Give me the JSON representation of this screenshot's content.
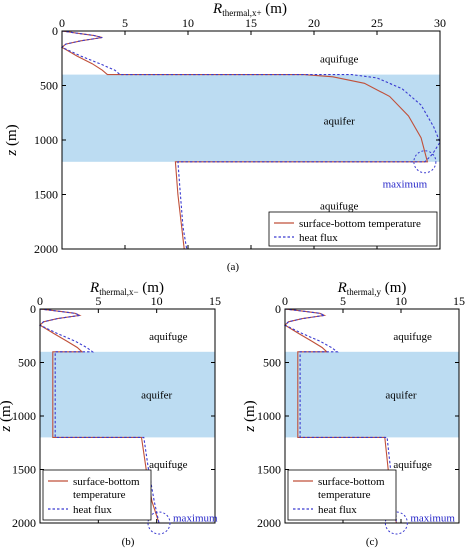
{
  "chart_data": [
    {
      "panel": "(a)",
      "type": "line",
      "xlabel_main": "R",
      "xlabel_sub": "thermal,x+",
      "xlabel_unit": "(m)",
      "ylabel_main": "z",
      "ylabel_unit": "(m)",
      "xlim": [
        0,
        30
      ],
      "ylim": [
        0,
        2000
      ],
      "y_inverted": true,
      "x_axis_position": "top",
      "xticks": [
        "0",
        "5",
        "10",
        "15",
        "20",
        "25",
        "30"
      ],
      "yticks": [
        "0",
        "500",
        "1000",
        "1500",
        "2000"
      ],
      "aquifer_band": [
        400,
        1200
      ],
      "aquifer_color": "#bcdcf2",
      "region_labels": [
        {
          "text": "aquifuge",
          "x": 22,
          "y": 250
        },
        {
          "text": "aquifer",
          "x": 22,
          "y": 820
        },
        {
          "text": "aquifuge",
          "x": 22,
          "y": 1600
        }
      ],
      "annotation": {
        "text": "maximum",
        "x": 28.8,
        "y": 1200,
        "label_y": 1400
      },
      "legend": {
        "entries": [
          "surface-bottom temperature",
          "heat flux"
        ],
        "position": "bottom-right"
      },
      "series": [
        {
          "name": "surface-bottom temperature",
          "color": "#c0503a",
          "style": "solid",
          "x": [
            0,
            1.2,
            2.5,
            3.2,
            1.5,
            0.3,
            0,
            1.2,
            2.4,
            3.2,
            3.6,
            19.2,
            21.5,
            24.0,
            26.0,
            27.5,
            28.5,
            29.0,
            9.0,
            9.2,
            9.5,
            9.7
          ],
          "y": [
            0,
            20,
            40,
            60,
            90,
            120,
            150,
            230,
            300,
            360,
            400,
            400,
            420,
            480,
            600,
            780,
            980,
            1200,
            1200,
            1500,
            1800,
            2000
          ]
        },
        {
          "name": "heat flux",
          "color": "#3a3ad0",
          "style": "dashed",
          "x": [
            0,
            1.2,
            2.5,
            3.2,
            1.5,
            0.3,
            0,
            1.5,
            3.0,
            4.2,
            4.6,
            23.0,
            25.0,
            27.0,
            28.5,
            29.5,
            30.0,
            29.4,
            28.8,
            9.2,
            9.4,
            9.6,
            9.9
          ],
          "y": [
            0,
            20,
            40,
            60,
            90,
            120,
            150,
            230,
            300,
            360,
            400,
            400,
            430,
            530,
            680,
            880,
            1020,
            1130,
            1200,
            1200,
            1500,
            1800,
            2000
          ]
        }
      ]
    },
    {
      "panel": "(b)",
      "type": "line",
      "xlabel_main": "R",
      "xlabel_sub": "thermal,x−",
      "xlabel_unit": "(m)",
      "ylabel_main": "z",
      "ylabel_unit": "(m)",
      "xlim": [
        0,
        15
      ],
      "ylim": [
        0,
        2000
      ],
      "y_inverted": true,
      "x_axis_position": "top",
      "xticks": [
        "0",
        "5",
        "10",
        "15"
      ],
      "yticks": [
        "0",
        "500",
        "1000",
        "1500",
        "2000"
      ],
      "aquifer_band": [
        400,
        1200
      ],
      "aquifer_color": "#bcdcf2",
      "region_labels": [
        {
          "text": "aquifuge",
          "x": 11,
          "y": 250
        },
        {
          "text": "aquifer",
          "x": 10,
          "y": 800
        },
        {
          "text": "aquifuge",
          "x": 11,
          "y": 1450
        }
      ],
      "annotation": {
        "text": "maximum",
        "x": 10.2,
        "y": 2000,
        "label_y": 1950
      },
      "legend": {
        "entries": [
          "surface-bottom temperature",
          "heat flux"
        ],
        "position": "bottom-left"
      },
      "series": [
        {
          "name": "surface-bottom temperature",
          "color": "#c0503a",
          "style": "solid",
          "x": [
            0,
            1.5,
            3.0,
            3.4,
            1.5,
            0.3,
            0,
            1.2,
            2.3,
            3.2,
            3.6,
            1.1,
            1.1,
            8.7,
            9.1,
            9.6,
            10.2
          ],
          "y": [
            0,
            20,
            40,
            60,
            90,
            120,
            150,
            230,
            300,
            360,
            400,
            400,
            1200,
            1200,
            1500,
            1800,
            2000
          ]
        },
        {
          "name": "heat flux",
          "color": "#3a3ad0",
          "style": "dashed",
          "x": [
            0,
            1.5,
            3.0,
            3.4,
            1.5,
            0.3,
            0,
            1.5,
            3.0,
            4.0,
            4.5,
            1.3,
            1.3,
            8.9,
            9.3,
            9.8,
            10.2
          ],
          "y": [
            0,
            20,
            40,
            60,
            90,
            120,
            150,
            230,
            300,
            360,
            400,
            400,
            1200,
            1200,
            1500,
            1800,
            2000
          ]
        }
      ]
    },
    {
      "panel": "(c)",
      "type": "line",
      "xlabel_main": "R",
      "xlabel_sub": "thermal,y",
      "xlabel_unit": "(m)",
      "ylabel_main": "z",
      "ylabel_unit": "(m)",
      "xlim": [
        0,
        15
      ],
      "ylim": [
        0,
        2000
      ],
      "y_inverted": true,
      "x_axis_position": "top",
      "xticks": [
        "0",
        "5",
        "10",
        "15"
      ],
      "yticks": [
        "0",
        "500",
        "1000",
        "1500",
        "2000"
      ],
      "aquifer_band": [
        400,
        1200
      ],
      "aquifer_color": "#bcdcf2",
      "region_labels": [
        {
          "text": "aquifuge",
          "x": 11,
          "y": 250
        },
        {
          "text": "aquifer",
          "x": 10,
          "y": 800
        },
        {
          "text": "aquifuge",
          "x": 11,
          "y": 1450
        }
      ],
      "annotation": {
        "text": "maximum",
        "x": 9.6,
        "y": 2000,
        "label_y": 1950
      },
      "legend": {
        "entries": [
          "surface-bottom temperature",
          "heat flux"
        ],
        "position": "bottom-left"
      },
      "series": [
        {
          "name": "surface-bottom temperature",
          "color": "#c0503a",
          "style": "solid",
          "x": [
            0,
            1.5,
            3.0,
            3.4,
            1.5,
            0.3,
            0,
            1.2,
            2.3,
            3.2,
            3.6,
            1.1,
            1.1,
            8.6,
            8.9,
            9.2,
            9.6
          ],
          "y": [
            0,
            20,
            40,
            60,
            90,
            120,
            150,
            230,
            300,
            360,
            400,
            400,
            1200,
            1200,
            1500,
            1800,
            2000
          ]
        },
        {
          "name": "heat flux",
          "color": "#3a3ad0",
          "style": "dashed",
          "x": [
            0,
            1.5,
            3.0,
            3.4,
            1.5,
            0.3,
            0,
            1.5,
            3.0,
            4.0,
            4.5,
            1.3,
            1.3,
            8.8,
            9.1,
            9.5,
            9.6
          ],
          "y": [
            0,
            20,
            40,
            60,
            90,
            120,
            150,
            230,
            300,
            360,
            400,
            400,
            1200,
            1200,
            1500,
            1800,
            2000
          ]
        }
      ]
    }
  ]
}
